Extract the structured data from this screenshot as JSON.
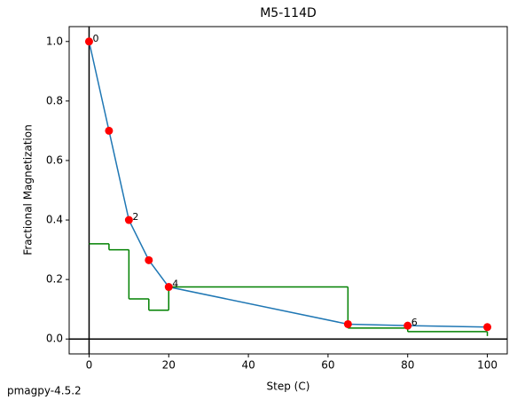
{
  "chart_data": {
    "type": "line",
    "title": "M5-114D",
    "xlabel": "Step (C)",
    "ylabel": "Fractional Magnetization",
    "footer": "pmagpy-4.5.2",
    "xlim": [
      -5,
      105
    ],
    "ylim": [
      -0.05,
      1.05
    ],
    "xticks": [
      0,
      20,
      40,
      60,
      80,
      100
    ],
    "yticks": [
      {
        "value": 0,
        "label": "0.0"
      },
      0.2,
      0.4,
      0.6,
      0.8,
      {
        "value": 1,
        "label": "1.0"
      }
    ],
    "series": [
      {
        "color": "#1f77b4",
        "marker_color": "#ff0000",
        "x": [
          0,
          5,
          10,
          15,
          20,
          65,
          80,
          100
        ],
        "values": [
          1.0,
          0.7,
          0.4,
          0.265,
          0.175,
          0.05,
          0.045,
          0.04
        ],
        "point_labels": [
          "0",
          null,
          "2",
          null,
          "4",
          null,
          "6",
          null
        ]
      },
      {
        "color": "#008000",
        "step": "post",
        "x": [
          0,
          5,
          10,
          15,
          20,
          65,
          80,
          100
        ],
        "values": [
          0.32,
          0.3,
          0.135,
          0.097,
          0.175,
          0.037,
          0.025,
          0.01
        ]
      }
    ],
    "zero_lines_color": "#000000"
  }
}
